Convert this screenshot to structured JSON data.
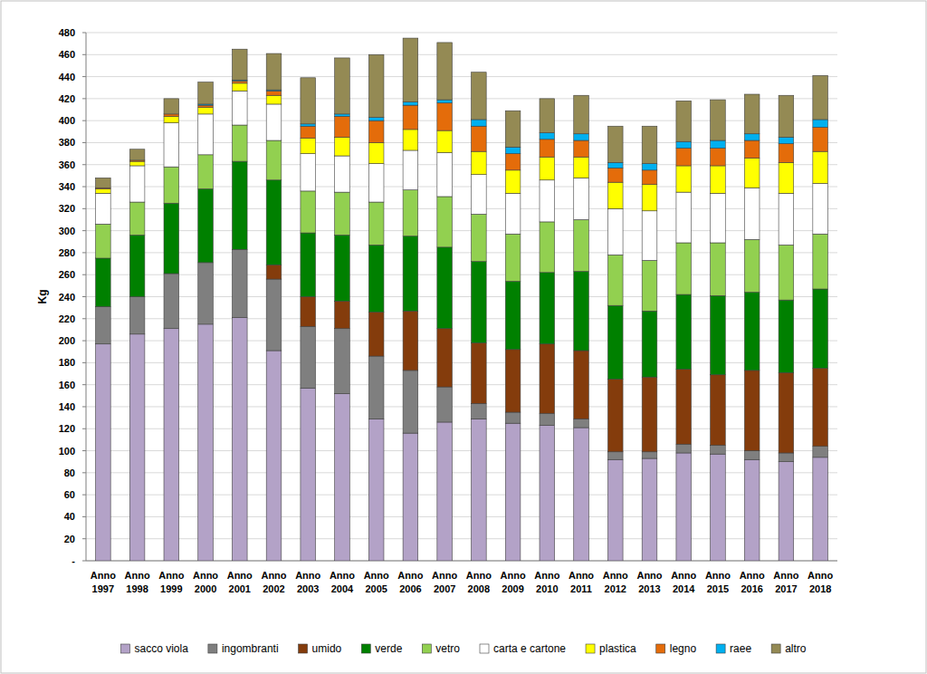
{
  "chart_data": {
    "type": "bar",
    "stacked": true,
    "grid": true,
    "legend": "bottom",
    "y_label": "Kg",
    "categories": [
      "Anno 1997",
      "Anno 1998",
      "Anno 1999",
      "Anno 2000",
      "Anno 2001",
      "Anno 2002",
      "Anno 2003",
      "Anno 2004",
      "Anno 2005",
      "Anno 2006",
      "Anno 2007",
      "Anno 2008",
      "Anno 2009",
      "Anno 2010",
      "Anno 2011",
      "Anno 2012",
      "Anno 2013",
      "Anno 2014",
      "Anno 2015",
      "Anno 2016",
      "Anno 2017",
      "Anno 2018"
    ],
    "ylim": [
      0,
      480
    ],
    "yticks": [
      {
        "value": 0,
        "label": "-"
      },
      20,
      40,
      60,
      80,
      100,
      120,
      140,
      160,
      180,
      200,
      220,
      240,
      260,
      280,
      300,
      320,
      340,
      360,
      380,
      400,
      420,
      440,
      460,
      480
    ],
    "series": [
      {
        "name": "sacco viola",
        "color": "#b3a2c7",
        "values": [
          197,
          206,
          211,
          215,
          221,
          191,
          157,
          152,
          129,
          116,
          126,
          129,
          125,
          123,
          121,
          92,
          93,
          98,
          97,
          92,
          90,
          94
        ]
      },
      {
        "name": "ingombranti",
        "color": "#7f7f7f",
        "values": [
          34,
          34,
          50,
          56,
          62,
          65,
          56,
          59,
          57,
          57,
          32,
          14,
          10,
          11,
          8,
          7,
          6,
          8,
          8,
          8,
          8,
          10
        ]
      },
      {
        "name": "umido",
        "color": "#843c0c",
        "values": [
          0,
          0,
          0,
          0,
          0,
          13,
          27,
          25,
          40,
          54,
          53,
          55,
          57,
          63,
          62,
          66,
          68,
          68,
          64,
          73,
          73,
          71
        ]
      },
      {
        "name": "verde",
        "color": "#008000",
        "values": [
          44,
          56,
          64,
          67,
          80,
          77,
          58,
          60,
          61,
          68,
          74,
          74,
          62,
          65,
          72,
          67,
          60,
          68,
          72,
          71,
          66,
          72
        ]
      },
      {
        "name": "vetro",
        "color": "#92d050",
        "values": [
          31,
          30,
          33,
          31,
          33,
          36,
          38,
          39,
          39,
          42,
          46,
          43,
          43,
          46,
          47,
          46,
          46,
          47,
          48,
          48,
          50,
          50
        ]
      },
      {
        "name": "carta e cartone",
        "color": "#ffffff",
        "values": [
          28,
          33,
          40,
          37,
          31,
          33,
          34,
          33,
          35,
          36,
          40,
          36,
          37,
          38,
          38,
          42,
          45,
          46,
          45,
          47,
          47,
          46
        ]
      },
      {
        "name": "plastica",
        "color": "#ffff00",
        "values": [
          4,
          4,
          6,
          6,
          7,
          8,
          14,
          17,
          19,
          19,
          20,
          21,
          21,
          21,
          19,
          24,
          24,
          24,
          25,
          27,
          28,
          29
        ]
      },
      {
        "name": "legno",
        "color": "#e46c0a",
        "values": [
          1,
          1,
          2,
          2,
          2,
          4,
          11,
          19,
          20,
          22,
          25,
          23,
          15,
          16,
          15,
          13,
          13,
          16,
          16,
          16,
          17,
          22
        ]
      },
      {
        "name": "raee",
        "color": "#00b0f0",
        "values": [
          0,
          0,
          0,
          1,
          1,
          1,
          2,
          2,
          3,
          3,
          3,
          6,
          6,
          6,
          6,
          5,
          6,
          6,
          7,
          6,
          6,
          7
        ]
      },
      {
        "name": "altro",
        "color": "#948a54",
        "values": [
          9,
          10,
          14,
          20,
          28,
          33,
          42,
          51,
          57,
          58,
          52,
          43,
          33,
          31,
          35,
          33,
          34,
          37,
          37,
          36,
          38,
          40
        ]
      }
    ]
  }
}
